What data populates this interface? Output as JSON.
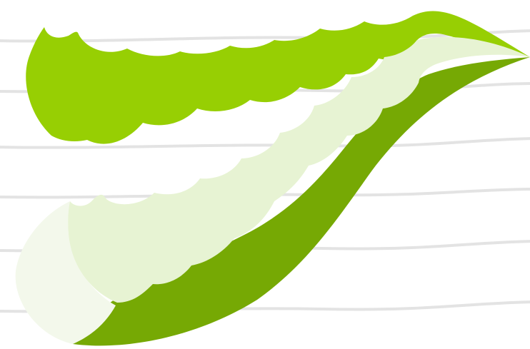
{
  "colors": {
    "background": "#ffffff",
    "lines": "#e3e3e3",
    "upper_skin": "#97cf03",
    "lower_skin": "#76a904",
    "gel": "#e7f3d3",
    "gel_edge": "#f3f8eb"
  },
  "icons": {
    "illustration": "aloe-vera-leaf-icon"
  }
}
